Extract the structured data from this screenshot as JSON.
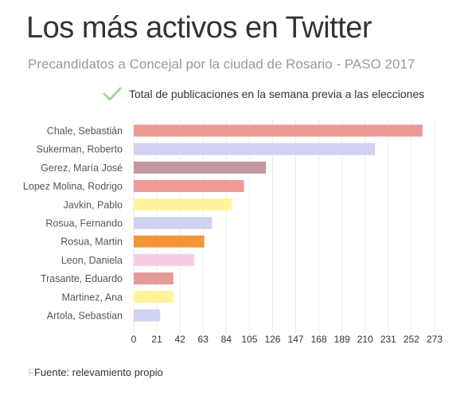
{
  "title": "Los más activos en Twitter",
  "subtitle": "Precandidatos a Concejal por la ciudad de Rosario - PASO 2017",
  "footer": {
    "faint_prefix": "F",
    "text": "Fuente: relevamiento propio"
  },
  "chart_data": {
    "type": "bar",
    "orientation": "horizontal",
    "legend_position": "top-right",
    "legend_check_color": "#a5d99b",
    "series": [
      {
        "name": "Total de publicaciones en la semana previa a las elecciones"
      }
    ],
    "categories": [
      "Chale, Sebastián",
      "Sukerman, Roberto",
      "Gerez, María José",
      "Lopez Molina, Rodrigo",
      "Javkin, Pablo",
      "Rosua, Fernando",
      "Rosua, Martin",
      "Leon, Daniela",
      "Trasante, Eduardo",
      "Martinez, Ana",
      "Artola, Sebastian"
    ],
    "values": [
      262,
      219,
      120,
      100,
      89,
      71,
      64,
      55,
      36,
      36,
      24
    ],
    "colors": [
      "#ec9a96",
      "#cfd2f1",
      "#c4969f",
      "#ec9a96",
      "#fff39e",
      "#cfd2f1",
      "#f29537",
      "#f8cce3",
      "#e39b99",
      "#fff39e",
      "#cfd2f1"
    ],
    "xticks": [
      0,
      21,
      42,
      63,
      84,
      105,
      126,
      147,
      168,
      189,
      210,
      231,
      252,
      273
    ],
    "xlim": [
      0,
      273
    ],
    "grid": true
  }
}
